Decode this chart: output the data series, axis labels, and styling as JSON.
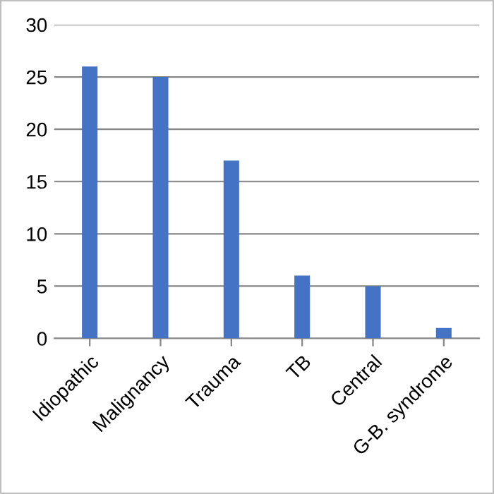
{
  "chart_data": {
    "type": "bar",
    "categories": [
      "Idiopathic",
      "Malignancy",
      "Trauma",
      "TB",
      "Central",
      "G-B. syndrome"
    ],
    "values": [
      26,
      25,
      17,
      6,
      5,
      1
    ],
    "color": "#4472c4",
    "ylim": [
      0,
      30
    ],
    "yticks": [
      0,
      5,
      10,
      15,
      20,
      25,
      30
    ],
    "grid": "y",
    "legend": false
  }
}
